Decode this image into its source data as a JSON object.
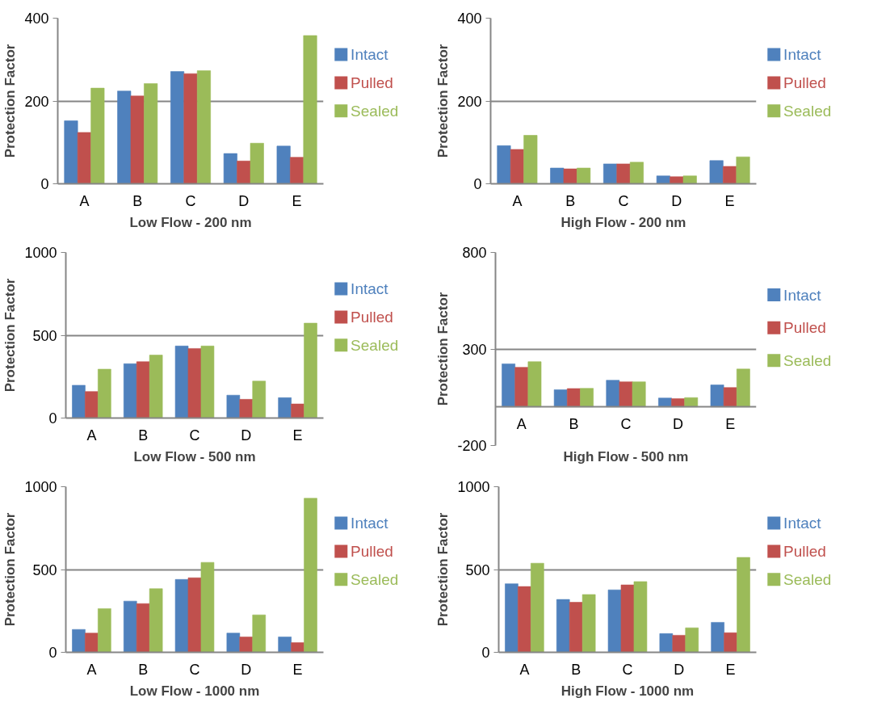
{
  "chart_data": [
    {
      "type": "bar",
      "xlabel": "Low Flow - 200 nm",
      "ylabel": "Protection Factor",
      "categories": [
        "A",
        "B",
        "C",
        "D",
        "E"
      ],
      "ylim": [
        0,
        400
      ],
      "yticks": [
        0,
        200,
        400
      ],
      "grid": "y",
      "legend": "right",
      "series": [
        {
          "name": "Intact",
          "color": "#4f81bd",
          "values": [
            152,
            224,
            271,
            73,
            91
          ]
        },
        {
          "name": "Pulled",
          "color": "#c0504d",
          "values": [
            124,
            212,
            266,
            55,
            64
          ]
        },
        {
          "name": "Sealed",
          "color": "#9bbb59",
          "values": [
            231,
            242,
            273,
            98,
            358
          ]
        }
      ]
    },
    {
      "type": "bar",
      "xlabel": "High Flow - 200 nm",
      "ylabel": "Protection Factor",
      "categories": [
        "A",
        "B",
        "C",
        "D",
        "E"
      ],
      "ylim": [
        0,
        400
      ],
      "yticks": [
        0,
        200,
        400
      ],
      "grid": "y",
      "legend": "right",
      "series": [
        {
          "name": "Intact",
          "color": "#4f81bd",
          "values": [
            92,
            38,
            48,
            19,
            56
          ]
        },
        {
          "name": "Pulled",
          "color": "#c0504d",
          "values": [
            83,
            36,
            48,
            17,
            42
          ]
        },
        {
          "name": "Sealed",
          "color": "#9bbb59",
          "values": [
            117,
            38,
            52,
            19,
            65
          ]
        }
      ]
    },
    {
      "type": "bar",
      "xlabel": "Low Flow - 500 nm",
      "ylabel": "Protection Factor",
      "categories": [
        "A",
        "B",
        "C",
        "D",
        "E"
      ],
      "ylim": [
        0,
        1000
      ],
      "yticks": [
        0,
        500,
        1000
      ],
      "grid": "y",
      "legend": "right",
      "series": [
        {
          "name": "Intact",
          "color": "#4f81bd",
          "values": [
            198,
            328,
            435,
            138,
            123
          ]
        },
        {
          "name": "Pulled",
          "color": "#c0504d",
          "values": [
            160,
            340,
            420,
            113,
            85
          ]
        },
        {
          "name": "Sealed",
          "color": "#9bbb59",
          "values": [
            295,
            380,
            435,
            223,
            573
          ]
        }
      ]
    },
    {
      "type": "bar",
      "xlabel": "High Flow - 500 nm",
      "ylabel": "Protection Factor",
      "categories": [
        "A",
        "B",
        "C",
        "D",
        "E"
      ],
      "ylim": [
        -200,
        800
      ],
      "yticks": [
        -200,
        300,
        800
      ],
      "grid": "y",
      "legend": "right",
      "series": [
        {
          "name": "Intact",
          "color": "#4f81bd",
          "values": [
            223,
            89,
            138,
            46,
            114
          ]
        },
        {
          "name": "Pulled",
          "color": "#c0504d",
          "values": [
            205,
            95,
            130,
            43,
            100
          ]
        },
        {
          "name": "Sealed",
          "color": "#9bbb59",
          "values": [
            234,
            96,
            130,
            48,
            196
          ]
        }
      ]
    },
    {
      "type": "bar",
      "xlabel": "Low Flow - 1000 nm",
      "ylabel": "Protection Factor",
      "categories": [
        "A",
        "B",
        "C",
        "D",
        "E"
      ],
      "ylim": [
        0,
        1000
      ],
      "yticks": [
        0,
        500,
        1000
      ],
      "grid": "y",
      "legend": "right",
      "series": [
        {
          "name": "Intact",
          "color": "#4f81bd",
          "values": [
            138,
            309,
            440,
            116,
            93
          ]
        },
        {
          "name": "Pulled",
          "color": "#c0504d",
          "values": [
            116,
            294,
            450,
            93,
            58
          ]
        },
        {
          "name": "Sealed",
          "color": "#9bbb59",
          "values": [
            264,
            384,
            543,
            226,
            930
          ]
        }
      ]
    },
    {
      "type": "bar",
      "xlabel": "High Flow - 1000 nm",
      "ylabel": "Protection Factor",
      "categories": [
        "A",
        "B",
        "C",
        "D",
        "E"
      ],
      "ylim": [
        0,
        1000
      ],
      "yticks": [
        0,
        500,
        1000
      ],
      "grid": "y",
      "legend": "right",
      "series": [
        {
          "name": "Intact",
          "color": "#4f81bd",
          "values": [
            414,
            319,
            377,
            113,
            181
          ]
        },
        {
          "name": "Pulled",
          "color": "#c0504d",
          "values": [
            397,
            302,
            407,
            103,
            118
          ]
        },
        {
          "name": "Sealed",
          "color": "#9bbb59",
          "values": [
            538,
            349,
            427,
            148,
            573
          ]
        }
      ]
    }
  ]
}
